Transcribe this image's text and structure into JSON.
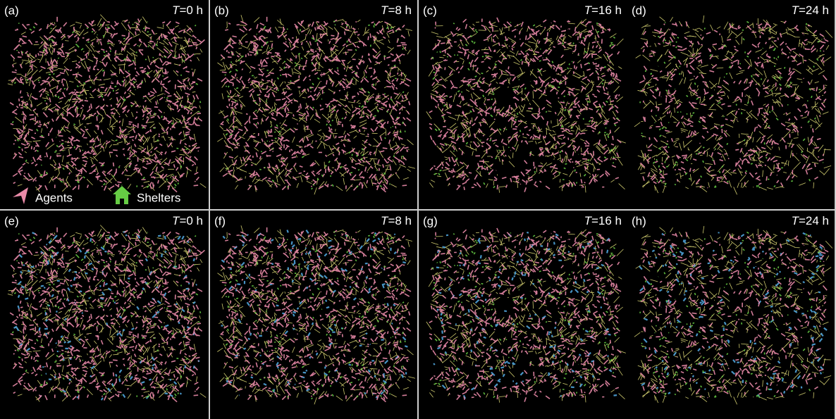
{
  "panels": [
    {
      "label": "(a)",
      "time_var": "T",
      "time_value": "=0 h"
    },
    {
      "label": "(b)",
      "time_var": "T",
      "time_value": "=8 h"
    },
    {
      "label": "(c)",
      "time_var": "T",
      "time_value": "=16 h"
    },
    {
      "label": "(d)",
      "time_var": "T",
      "time_value": "=24 h"
    },
    {
      "label": "(e)",
      "time_var": "T",
      "time_value": "=0 h"
    },
    {
      "label": "(f)",
      "time_var": "T",
      "time_value": "=8 h"
    },
    {
      "label": "(g)",
      "time_var": "T",
      "time_value": "=16 h"
    },
    {
      "label": "(h)",
      "time_var": "T",
      "time_value": "=24 h"
    }
  ],
  "legend": {
    "agents": "Agents",
    "shelters": "Shelters"
  }
}
